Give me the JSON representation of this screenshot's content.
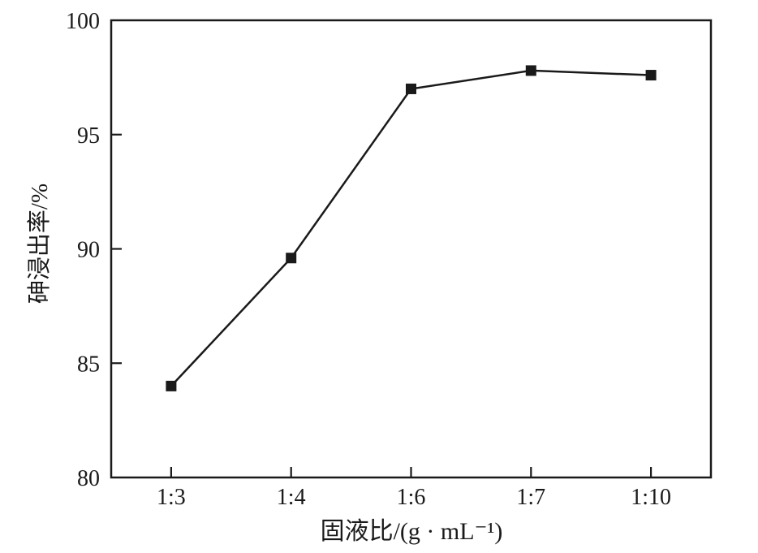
{
  "chart_data": {
    "type": "line",
    "categories": [
      "1:3",
      "1:4",
      "1:6",
      "1:7",
      "1:10"
    ],
    "values": [
      84.0,
      89.6,
      97.0,
      97.8,
      97.6
    ],
    "title": "",
    "xlabel": "固液比/(g · mL⁻¹)",
    "ylabel": "砷浸出率/%",
    "ylim": [
      80,
      100
    ],
    "yticks": [
      80,
      85,
      90,
      95,
      100
    ],
    "marker": "square",
    "marker_size": 13,
    "line_color": "#1a1a1a",
    "marker_color": "#1a1a1a",
    "background": "#ffffff",
    "grid": "off",
    "legend": "none"
  }
}
